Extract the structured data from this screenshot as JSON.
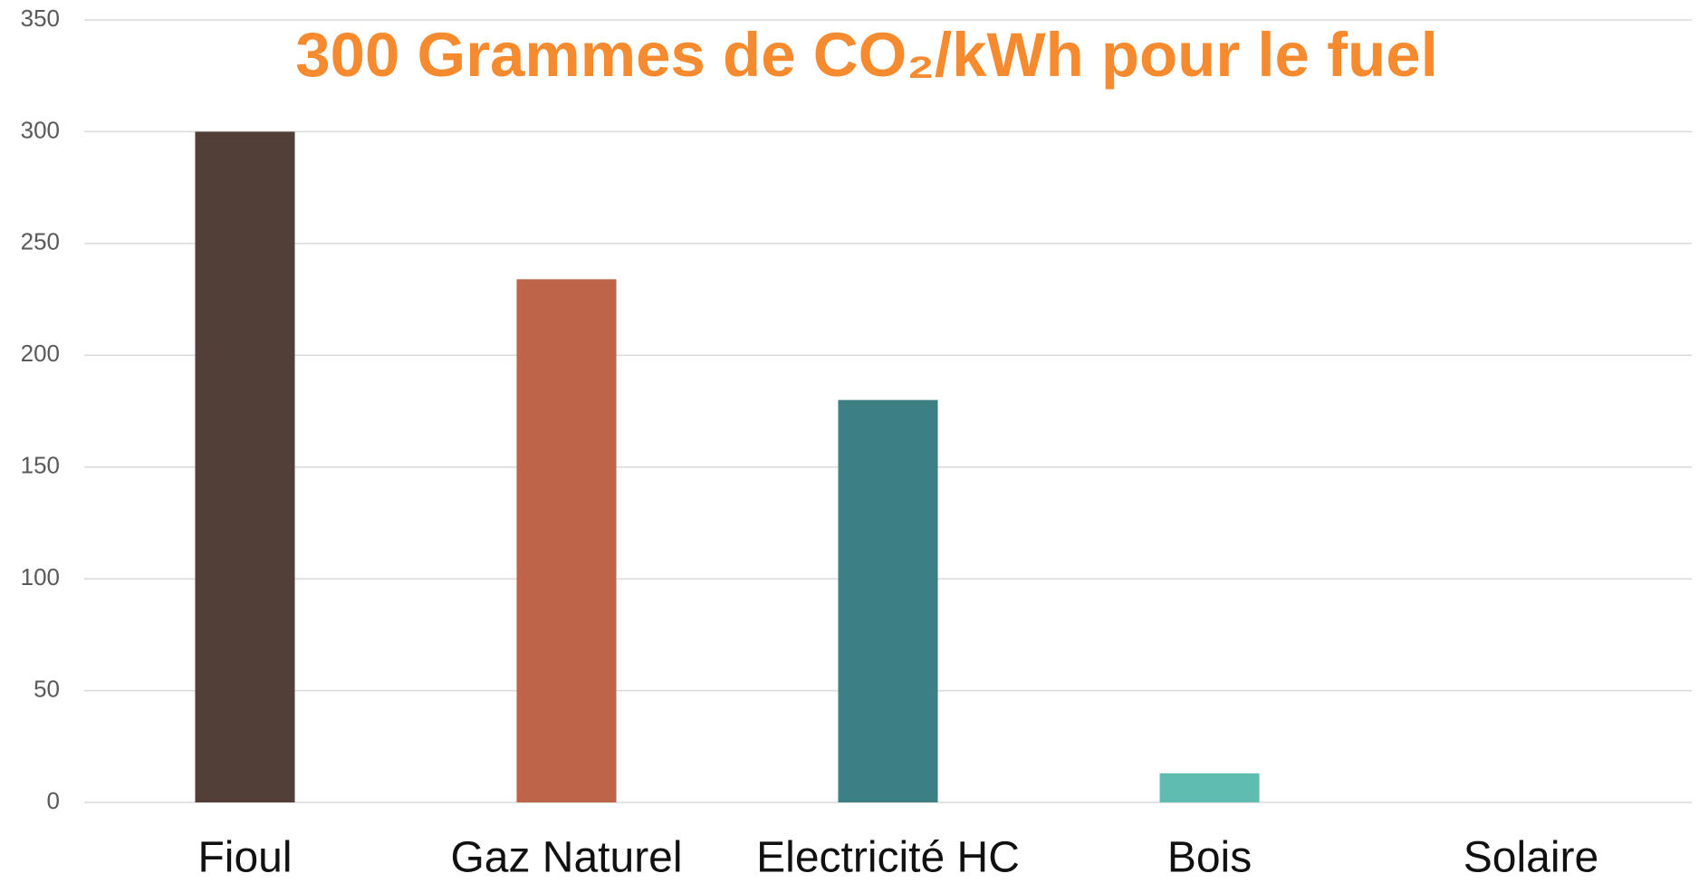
{
  "chart_data": {
    "type": "bar",
    "title": "300 Grammes de CO₂/kWh pour le fuel",
    "categories": [
      "Fioul",
      "Gaz Naturel",
      "Electricité HC",
      "Bois",
      "Solaire"
    ],
    "values": [
      300,
      234,
      180,
      13,
      0
    ],
    "colors": [
      "#523f37",
      "#bd6449",
      "#3d8084",
      "#5fbcb1",
      "#5fbcb1"
    ],
    "ylim": [
      0,
      350
    ],
    "yticks": [
      0,
      50,
      100,
      150,
      200,
      250,
      300,
      350
    ],
    "grid": true
  }
}
